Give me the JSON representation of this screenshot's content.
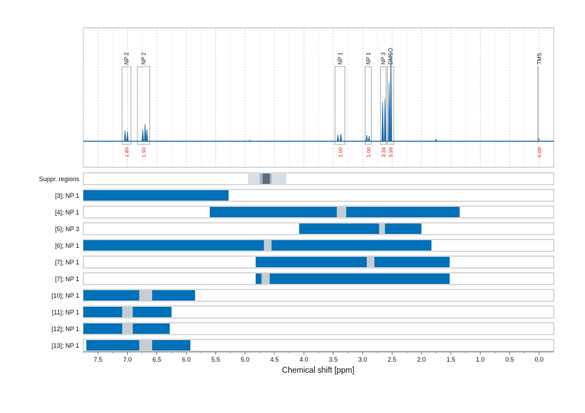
{
  "chart_data": {
    "type": "nmr-spectrum-with-range-bars",
    "xlabel": "Chemical shift [ppm]",
    "xlim": [
      7.75,
      -0.25
    ],
    "x_ticks": [
      "7.5",
      "7.0",
      "6.5",
      "6.0",
      "5.5",
      "5.0",
      "4.5",
      "4.0",
      "3.5",
      "3.0",
      "2.5",
      "2.0",
      "1.5",
      "1.0",
      "0.5",
      "0.0"
    ],
    "x_tick_values": [
      7.5,
      7.0,
      6.5,
      6.0,
      5.5,
      5.0,
      4.5,
      4.0,
      3.5,
      3.0,
      2.5,
      2.0,
      1.5,
      1.0,
      0.5,
      0.0
    ],
    "grid": "vertical dashed",
    "colors": {
      "bar": "#0070b8",
      "spectrum": "#1f6fb0",
      "gap": "#c5ccd3",
      "integral": "#e0201b",
      "supp_light": "#d7dfe6",
      "supp_mid": "#a6b2bd",
      "supp_dark": "#5a6b79"
    },
    "spectrum": {
      "peaks": [
        {
          "ppm": 7.04,
          "height": 0.1
        },
        {
          "ppm": 7.0,
          "height": 0.09
        },
        {
          "ppm": 6.74,
          "height": 0.11
        },
        {
          "ppm": 6.7,
          "height": 0.16
        },
        {
          "ppm": 6.67,
          "height": 0.11
        },
        {
          "ppm": 3.42,
          "height": 0.06
        },
        {
          "ppm": 3.37,
          "height": 0.07
        },
        {
          "ppm": 2.93,
          "height": 0.06
        },
        {
          "ppm": 2.89,
          "height": 0.05
        },
        {
          "ppm": 2.66,
          "height": 0.37
        },
        {
          "ppm": 2.62,
          "height": 0.4
        },
        {
          "ppm": 2.55,
          "height": 0.55
        },
        {
          "ppm": 2.52,
          "height": 0.82
        },
        {
          "ppm": 4.92,
          "height": 0.01
        },
        {
          "ppm": 1.75,
          "height": 0.02
        },
        {
          "ppm": 0.0,
          "height": 0.03
        }
      ],
      "regions": [
        {
          "label": "NP 2",
          "from": 7.09,
          "to": 6.94,
          "integral": "1.89"
        },
        {
          "label": "NP 2",
          "from": 6.83,
          "to": 6.62,
          "integral": "1.90"
        },
        {
          "label": "NP 1",
          "from": 3.47,
          "to": 3.3,
          "integral": "1.00"
        },
        {
          "label": "NP 1",
          "from": 2.96,
          "to": 2.85,
          "integral": "1.00"
        },
        {
          "label": "NP 3",
          "from": 2.7,
          "to": 2.6,
          "integral": "3.34"
        },
        {
          "label": "DMSO",
          "from": 2.58,
          "to": 2.47,
          "integral": "5.99"
        },
        {
          "label": "TMS",
          "from": 0.02,
          "to": -0.02,
          "integral": "0.00"
        }
      ]
    },
    "suppressed_regions": {
      "label": "Suppr. regions",
      "bands": [
        {
          "from": 4.95,
          "to": 4.3,
          "shade": "light"
        },
        {
          "from": 4.75,
          "to": 4.55,
          "shade": "mid"
        },
        {
          "from": 4.7,
          "to": 4.58,
          "shade": "dark"
        }
      ]
    },
    "rows": [
      {
        "label": "[3]; NP 1",
        "from": 7.75,
        "to": 5.28,
        "gaps": []
      },
      {
        "label": "[4]; NP 1",
        "from": 5.6,
        "to": 1.35,
        "gaps": [
          [
            3.44,
            3.28
          ]
        ]
      },
      {
        "label": "[5]; NP 3",
        "from": 4.08,
        "to": 2.0,
        "gaps": [
          [
            2.72,
            2.62
          ]
        ]
      },
      {
        "label": "[6]; NP 1",
        "from": 7.75,
        "to": 1.83,
        "gaps": [
          [
            4.68,
            4.55
          ]
        ]
      },
      {
        "label": "[7]; NP 1",
        "from": 4.82,
        "to": 1.52,
        "gaps": [
          [
            2.93,
            2.8
          ]
        ]
      },
      {
        "label": "[7]; NP 1",
        "from": 4.82,
        "to": 1.52,
        "gaps": [
          [
            4.72,
            4.58
          ]
        ]
      },
      {
        "label": "[10]; NP 1",
        "from": 7.75,
        "to": 5.85,
        "gaps": [
          [
            6.8,
            6.58
          ]
        ]
      },
      {
        "label": "[11]; NP 1",
        "from": 7.75,
        "to": 6.25,
        "gaps": [
          [
            7.09,
            6.91
          ]
        ]
      },
      {
        "label": "[12]; NP 1",
        "from": 7.75,
        "to": 6.28,
        "gaps": [
          [
            7.09,
            6.91
          ]
        ]
      },
      {
        "label": "[13]; NP 1",
        "from": 7.7,
        "to": 5.93,
        "gaps": [
          [
            6.8,
            6.58
          ]
        ]
      }
    ]
  }
}
